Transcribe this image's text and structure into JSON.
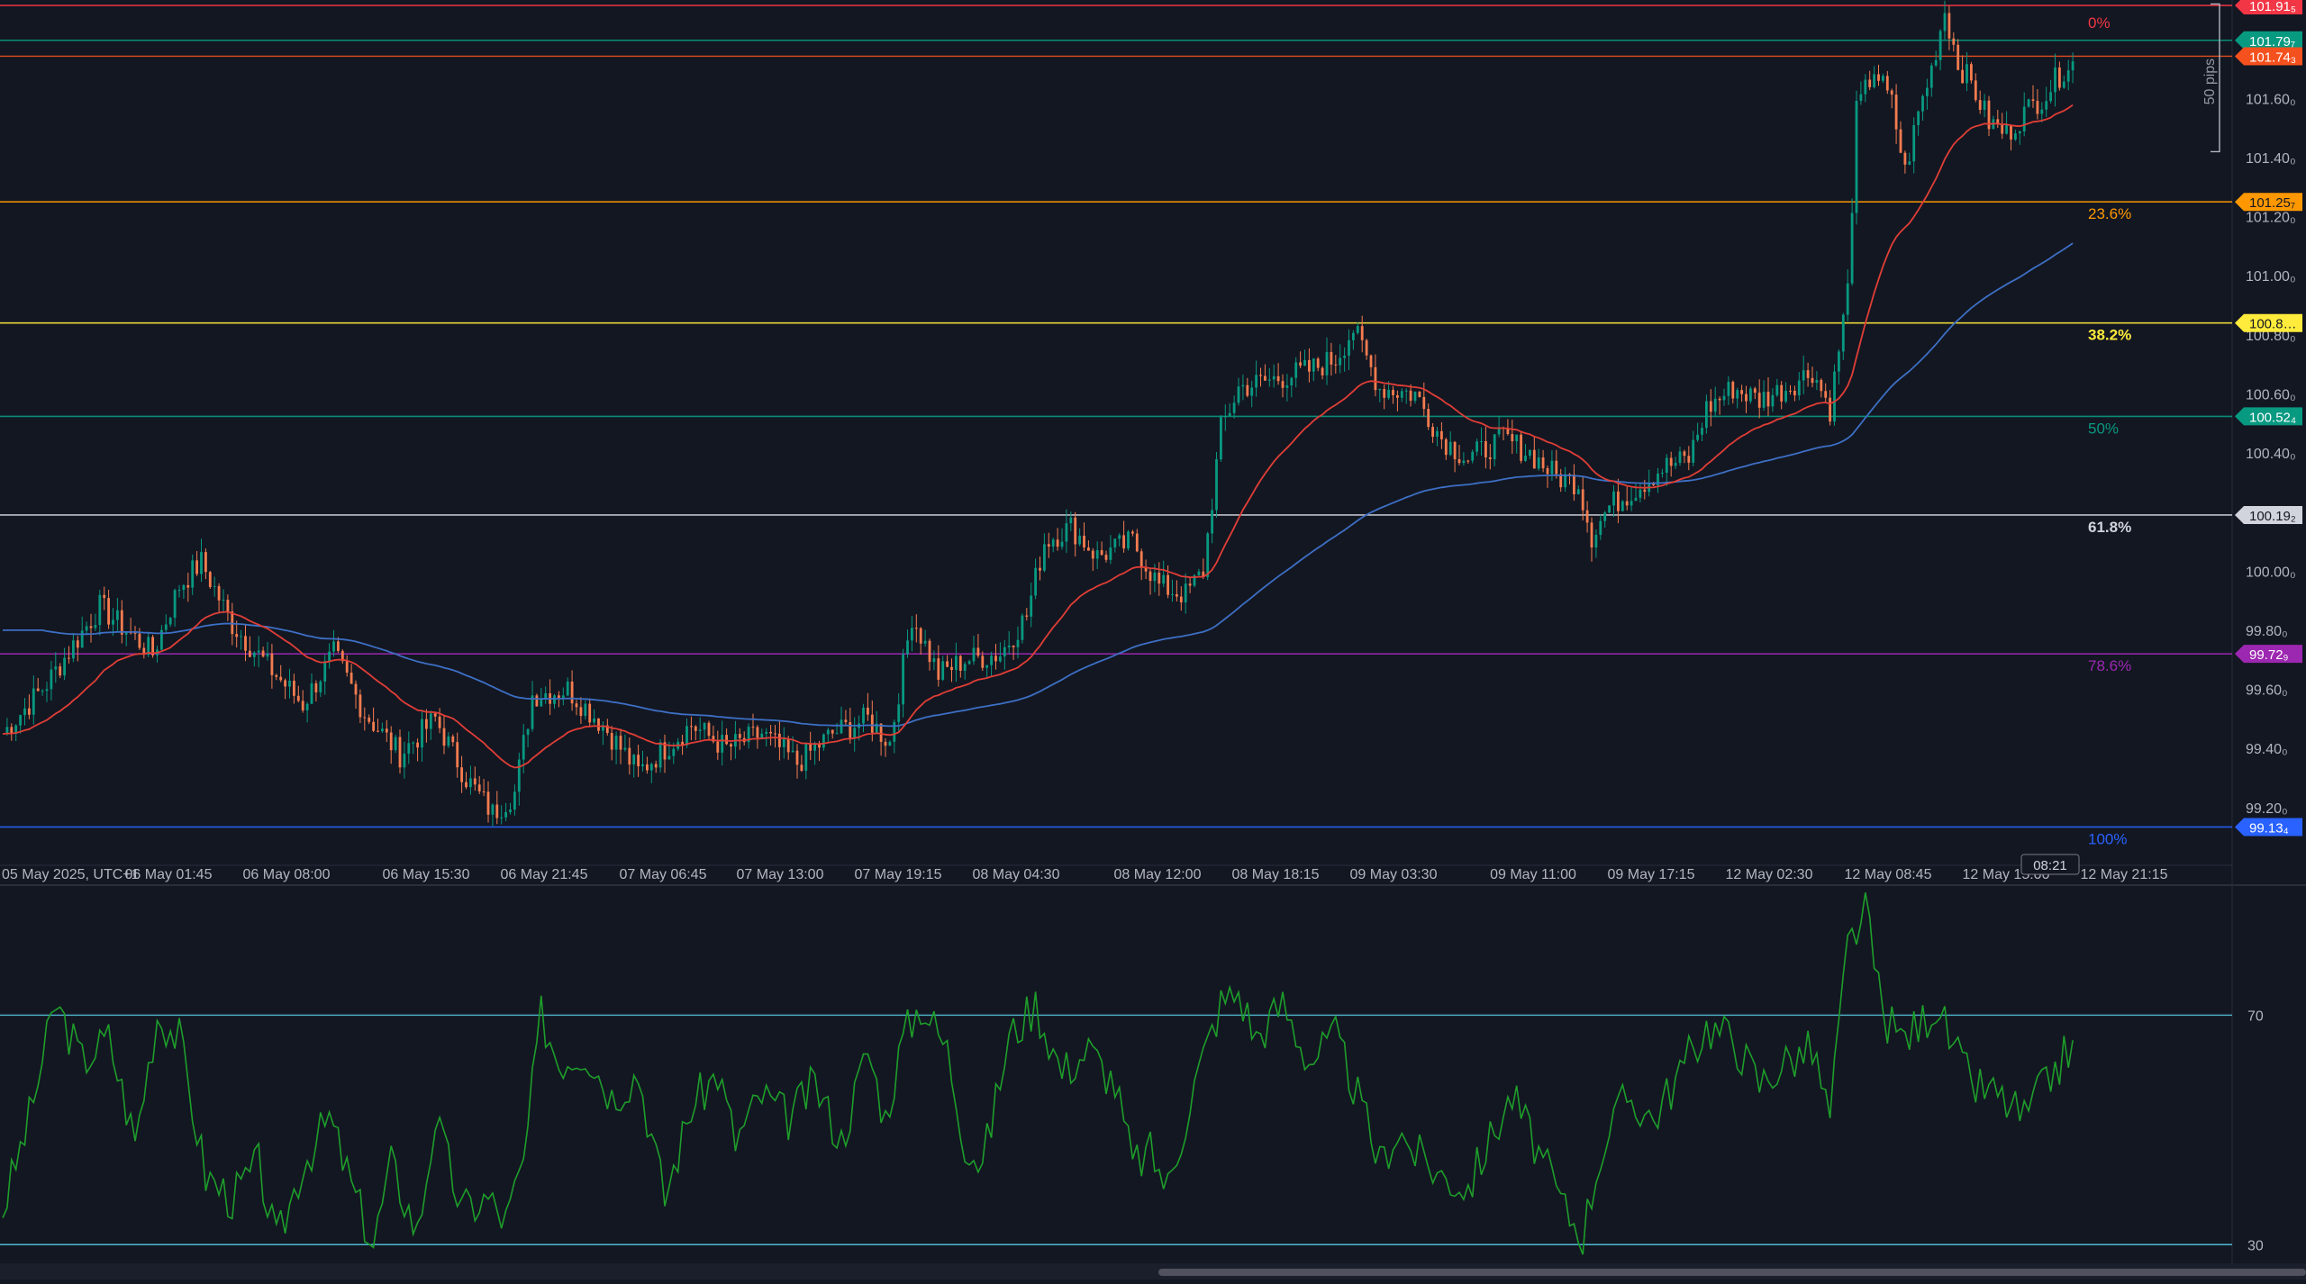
{
  "chart_data": {
    "type": "candlestick",
    "instrument_timezone_label": "05 May 2025, UTC+1",
    "x_ticks": [
      "05 May 2025, UTC+1",
      "06 May 01:45",
      "06 May 08:00",
      "06 May 15:30",
      "06 May 21:45",
      "07 May 06:45",
      "07 May 13:00",
      "07 May 19:15",
      "08 May 04:30",
      "08 May 12:00",
      "08 May 18:15",
      "09 May 03:30",
      "09 May 11:00",
      "09 May 17:15",
      "12 May 02:30",
      "12 May 08:45",
      "12 May 15:00",
      "12 May 21:15"
    ],
    "cursor_time": "08:21",
    "price_axis": {
      "ylim": [
        99.05,
        101.97
      ],
      "ticks": [
        "101.60₀",
        "101.40₀",
        "101.20₀",
        "101.00₀",
        "100.80₀",
        "100.60₀",
        "100.40₀",
        "100.00₀",
        "99.80₀",
        "99.60₀",
        "99.40₀",
        "99.20₀"
      ],
      "tick_values": [
        101.6,
        101.4,
        101.2,
        101.0,
        100.8,
        100.6,
        100.4,
        100.0,
        99.8,
        99.6,
        99.4,
        99.2
      ]
    },
    "fib_levels": [
      {
        "pct": "0%",
        "price": 101.915,
        "tag": "101.91₅",
        "color": "#f23645"
      },
      {
        "pct": "23.6%",
        "price": 101.25,
        "tag": "101.25₇",
        "color": "#ff9800"
      },
      {
        "pct": "38.2%",
        "price": 100.84,
        "tag": "100.8…",
        "color": "#ffeb3b"
      },
      {
        "pct": "50%",
        "price": 100.524,
        "tag": "100.52₄",
        "color": "#089981"
      },
      {
        "pct": "61.8%",
        "price": 100.19,
        "tag": "100.19₂",
        "color": "#d1d4dc"
      },
      {
        "pct": "78.6%",
        "price": 99.72,
        "tag": "99.72₉",
        "color": "#9c27b0"
      },
      {
        "pct": "100%",
        "price": 99.134,
        "tag": "99.13₄",
        "color": "#2962ff"
      }
    ],
    "price_tags": [
      {
        "price": 101.797,
        "tag": "101.79₇",
        "color": "#089981"
      },
      {
        "price": 101.743,
        "tag": "101.74₃",
        "color": "#f4511e"
      }
    ],
    "measure_label": "50 pips",
    "anchors": [
      [
        0,
        99.45
      ],
      [
        10,
        99.62
      ],
      [
        22,
        99.88
      ],
      [
        28,
        99.8
      ],
      [
        34,
        99.72
      ],
      [
        40,
        99.95
      ],
      [
        45,
        100.03
      ],
      [
        52,
        99.82
      ],
      [
        60,
        99.68
      ],
      [
        68,
        99.55
      ],
      [
        75,
        99.72
      ],
      [
        82,
        99.52
      ],
      [
        90,
        99.38
      ],
      [
        98,
        99.5
      ],
      [
        105,
        99.3
      ],
      [
        111,
        99.18
      ],
      [
        116,
        99.25
      ],
      [
        120,
        99.58
      ],
      [
        128,
        99.6
      ],
      [
        136,
        99.48
      ],
      [
        144,
        99.32
      ],
      [
        150,
        99.4
      ],
      [
        156,
        99.48
      ],
      [
        164,
        99.4
      ],
      [
        172,
        99.45
      ],
      [
        180,
        99.35
      ],
      [
        188,
        99.45
      ],
      [
        196,
        99.5
      ],
      [
        201,
        99.42
      ],
      [
        206,
        99.85
      ],
      [
        212,
        99.65
      ],
      [
        218,
        99.7
      ],
      [
        226,
        99.72
      ],
      [
        232,
        99.85
      ],
      [
        236,
        100.1
      ],
      [
        242,
        100.15
      ],
      [
        248,
        100.05
      ],
      [
        256,
        100.1
      ],
      [
        262,
        99.95
      ],
      [
        268,
        99.92
      ],
      [
        272,
        100.0
      ],
      [
        276,
        100.48
      ],
      [
        280,
        100.62
      ],
      [
        288,
        100.65
      ],
      [
        296,
        100.68
      ],
      [
        302,
        100.72
      ],
      [
        306,
        100.82
      ],
      [
        312,
        100.62
      ],
      [
        320,
        100.6
      ],
      [
        326,
        100.45
      ],
      [
        332,
        100.38
      ],
      [
        340,
        100.45
      ],
      [
        346,
        100.4
      ],
      [
        352,
        100.32
      ],
      [
        357,
        100.3
      ],
      [
        360,
        100.12
      ],
      [
        364,
        100.22
      ],
      [
        370,
        100.28
      ],
      [
        376,
        100.35
      ],
      [
        382,
        100.38
      ],
      [
        386,
        100.55
      ],
      [
        392,
        100.62
      ],
      [
        398,
        100.58
      ],
      [
        404,
        100.62
      ],
      [
        410,
        100.68
      ],
      [
        414,
        100.55
      ],
      [
        418,
        100.95
      ],
      [
        420,
        101.55
      ],
      [
        424,
        101.7
      ],
      [
        428,
        101.58
      ],
      [
        431,
        101.35
      ],
      [
        434,
        101.55
      ],
      [
        437,
        101.7
      ],
      [
        440,
        101.9
      ],
      [
        443,
        101.72
      ],
      [
        446,
        101.65
      ],
      [
        450,
        101.52
      ],
      [
        454,
        101.48
      ],
      [
        458,
        101.55
      ],
      [
        463,
        101.62
      ],
      [
        468,
        101.72
      ]
    ],
    "rsi": {
      "levels": [
        70,
        30
      ],
      "ylim": [
        28,
        90
      ],
      "anchors": [
        [
          0,
          36
        ],
        [
          6,
          52
        ],
        [
          12,
          72
        ],
        [
          18,
          62
        ],
        [
          24,
          66
        ],
        [
          30,
          48
        ],
        [
          35,
          70
        ],
        [
          40,
          66
        ],
        [
          46,
          42
        ],
        [
          52,
          38
        ],
        [
          58,
          44
        ],
        [
          62,
          30
        ],
        [
          68,
          44
        ],
        [
          74,
          52
        ],
        [
          80,
          38
        ],
        [
          84,
          30
        ],
        [
          88,
          44
        ],
        [
          94,
          32
        ],
        [
          98,
          52
        ],
        [
          104,
          36
        ],
        [
          110,
          38
        ],
        [
          114,
          34
        ],
        [
          118,
          44
        ],
        [
          122,
          70
        ],
        [
          126,
          62
        ],
        [
          132,
          64
        ],
        [
          138,
          56
        ],
        [
          144,
          60
        ],
        [
          150,
          38
        ],
        [
          156,
          54
        ],
        [
          162,
          60
        ],
        [
          166,
          48
        ],
        [
          172,
          56
        ],
        [
          178,
          52
        ],
        [
          184,
          58
        ],
        [
          190,
          48
        ],
        [
          196,
          64
        ],
        [
          200,
          52
        ],
        [
          204,
          66
        ],
        [
          208,
          72
        ],
        [
          214,
          64
        ],
        [
          218,
          48
        ],
        [
          222,
          44
        ],
        [
          228,
          66
        ],
        [
          234,
          72
        ],
        [
          240,
          60
        ],
        [
          246,
          64
        ],
        [
          252,
          58
        ],
        [
          256,
          44
        ],
        [
          260,
          46
        ],
        [
          264,
          40
        ],
        [
          270,
          58
        ],
        [
          276,
          72
        ],
        [
          280,
          74
        ],
        [
          284,
          66
        ],
        [
          290,
          72
        ],
        [
          296,
          62
        ],
        [
          302,
          66
        ],
        [
          306,
          58
        ],
        [
          312,
          44
        ],
        [
          316,
          50
        ],
        [
          320,
          46
        ],
        [
          326,
          42
        ],
        [
          332,
          40
        ],
        [
          338,
          50
        ],
        [
          342,
          56
        ],
        [
          348,
          46
        ],
        [
          354,
          36
        ],
        [
          358,
          32
        ],
        [
          362,
          46
        ],
        [
          368,
          56
        ],
        [
          374,
          52
        ],
        [
          380,
          60
        ],
        [
          386,
          68
        ],
        [
          392,
          66
        ],
        [
          398,
          58
        ],
        [
          404,
          62
        ],
        [
          410,
          64
        ],
        [
          414,
          52
        ],
        [
          418,
          82
        ],
        [
          422,
          88
        ],
        [
          426,
          70
        ],
        [
          430,
          66
        ],
        [
          434,
          68
        ],
        [
          438,
          72
        ],
        [
          442,
          64
        ],
        [
          446,
          58
        ],
        [
          452,
          56
        ],
        [
          458,
          52
        ],
        [
          463,
          58
        ],
        [
          468,
          64
        ]
      ]
    }
  }
}
